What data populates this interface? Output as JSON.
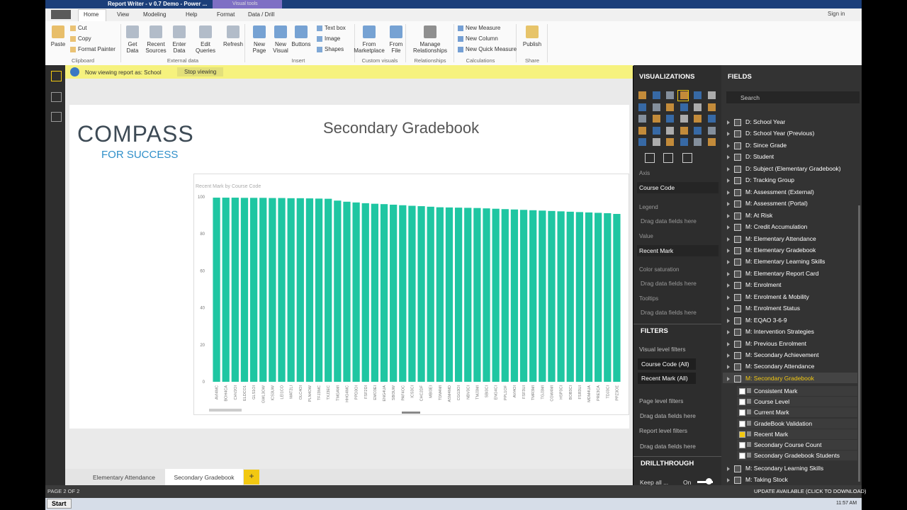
{
  "window": {
    "title": "Report Writer - v 0.7 Demo - Power ...",
    "context_tab": "Visual tools",
    "sign_in": "Sign in"
  },
  "ribbon": {
    "tabs": [
      "Home",
      "View",
      "Modeling",
      "Help",
      "Format",
      "Data / Drill"
    ],
    "groups": [
      {
        "name": "Clipboard",
        "buttons": [
          "Paste"
        ],
        "small": [
          "Cut",
          "Copy",
          "Format Painter"
        ]
      },
      {
        "name": "External data",
        "buttons": [
          "Get Data",
          "Recent Sources",
          "Enter Data",
          "Edit Queries",
          "Refresh"
        ]
      },
      {
        "name": "Insert",
        "buttons": [
          "New Page",
          "New Visual",
          "Buttons"
        ],
        "small": [
          "Text box",
          "Image",
          "Shapes"
        ]
      },
      {
        "name": "Custom visuals",
        "buttons": [
          "From Marketplace",
          "From File"
        ]
      },
      {
        "name": "Relationships",
        "buttons": [
          "Manage Relationships"
        ]
      },
      {
        "name": "Calculations",
        "small": [
          "New Measure",
          "New Column",
          "New Quick Measure"
        ]
      },
      {
        "name": "Share",
        "buttons": [
          "Publish"
        ]
      }
    ]
  },
  "notice": {
    "text": "Now viewing report as: School",
    "action": "Stop viewing"
  },
  "report": {
    "logo": "COMPASS",
    "logo_sub": "FOR SUCCESS",
    "title": "Secondary Gradebook"
  },
  "chart_data": {
    "type": "bar",
    "title": "Recent Mark by Course Code",
    "color": "#1fc6a2",
    "grid": false,
    "categories": [
      "AVI4MC",
      "BOH4CA",
      "CHV2OI",
      "ELDCO1",
      "GLS1OI",
      "GWL3OW",
      "ICS3UW",
      "LEI1CO",
      "MAT2LI",
      "OLC4OI",
      "PLN4OW",
      "TFJ3MC",
      "TXJ3EC",
      "TMGAMI",
      "HHG4MC",
      "PPD3OI",
      "FSF2DI",
      "EMO3EI",
      "ENG4UA",
      "SBI3UW",
      "PAF4OC",
      "ICS3CI",
      "CHC2DF",
      "MBI3EI",
      "TDM4MI",
      "ASM4MD",
      "CGG3OI",
      "NBV3CI",
      "TMJ3MI",
      "SBI3CI",
      "ENG4CI",
      "PPL1OF",
      "AVI4OI",
      "FSF3UI",
      "TMR3MI",
      "TGJ3MI",
      "CGW4MI",
      "HSP3CI",
      "BOB3CI",
      "FSR3UI",
      "MDM4UA",
      "PRE3CA",
      "TDJ3CI",
      "PPZ3OE"
    ],
    "values": [
      99.6,
      99.6,
      99.6,
      99.5,
      99.5,
      99.5,
      99.4,
      99.4,
      99.3,
      99.3,
      99.2,
      99.1,
      99,
      98,
      97.4,
      97,
      96.6,
      96.3,
      96.1,
      95.8,
      95.5,
      95.2,
      95,
      94.7,
      94.4,
      94.3,
      94.2,
      94.1,
      94,
      93.8,
      93.6,
      93.4,
      93.2,
      93,
      92.8,
      92.6,
      92.4,
      92.2,
      92,
      91.8,
      91.6,
      91.4,
      91.2,
      90.8
    ],
    "ylim": [
      0,
      100
    ],
    "yticks": [
      0,
      20,
      40,
      60,
      80,
      100
    ]
  },
  "visualizations": {
    "header": "VISUALIZATIONS",
    "wells": [
      {
        "label": "Axis",
        "field": "Course Code"
      },
      {
        "label": "Legend",
        "placeholder": "Drag data fields here"
      },
      {
        "label": "Value",
        "field": "Recent Mark"
      },
      {
        "label": "Color saturation",
        "placeholder": "Drag data fields here"
      },
      {
        "label": "Tooltips",
        "placeholder": "Drag data fields here"
      }
    ]
  },
  "filters": {
    "header": "FILTERS",
    "visual_level": "Visual level filters",
    "visual_filters": [
      "Course Code (All)",
      "Recent Mark (All)"
    ],
    "page_level": "Page level filters",
    "page_placeholder": "Drag data fields here",
    "report_level": "Report level filters",
    "report_placeholder": "Drag data fields here"
  },
  "drillthrough": {
    "header": "DRILLTHROUGH",
    "keep_all": "Keep all ...",
    "toggle": "On"
  },
  "fields": {
    "header": "FIELDS",
    "search": "Search",
    "tables": [
      "D: School Year",
      "D: School Year (Previous)",
      "D: Since Grade",
      "D: Student",
      "D: Subject (Elementary Gradebook)",
      "D: Tracking Group",
      "M: Assessment (External)",
      "M: Assessment (Portal)",
      "M: At Risk",
      "M: Credit Accumulation",
      "M: Elementary Attendance",
      "M: Elementary Gradebook",
      "M: Elementary Learning Skills",
      "M: Elementary Report Card",
      "M: Enrolment",
      "M: Enrolment & Mobility",
      "M: Enrolment Status",
      "M: EQAO 3-6-9",
      "M: Intervention Strategies",
      "M: Previous Enrolment",
      "M: Secondary Achievement",
      "M: Secondary Attendance",
      "M: Secondary Gradebook"
    ],
    "expanded_fields": [
      {
        "name": "Consistent Mark",
        "checked": false
      },
      {
        "name": "Course Level",
        "checked": false
      },
      {
        "name": "Current Mark",
        "checked": false
      },
      {
        "name": "GradeBook Validation",
        "checked": false
      },
      {
        "name": "Recent Mark",
        "checked": true
      },
      {
        "name": "Secondary Course Count",
        "checked": false
      },
      {
        "name": "Secondary Gradebook Students",
        "checked": false
      }
    ],
    "tables_after": [
      "M: Secondary Learning Skills",
      "M: Taking Stock"
    ]
  },
  "pages": {
    "tabs": [
      "Elementary Attendance",
      "Secondary Gradebook"
    ],
    "add": "+"
  },
  "status": {
    "page": "PAGE 2 OF 2",
    "update": "UPDATE AVAILABLE (CLICK TO DOWNLOAD)"
  },
  "taskbar": {
    "start": "Start",
    "time": "11:57 AM"
  }
}
